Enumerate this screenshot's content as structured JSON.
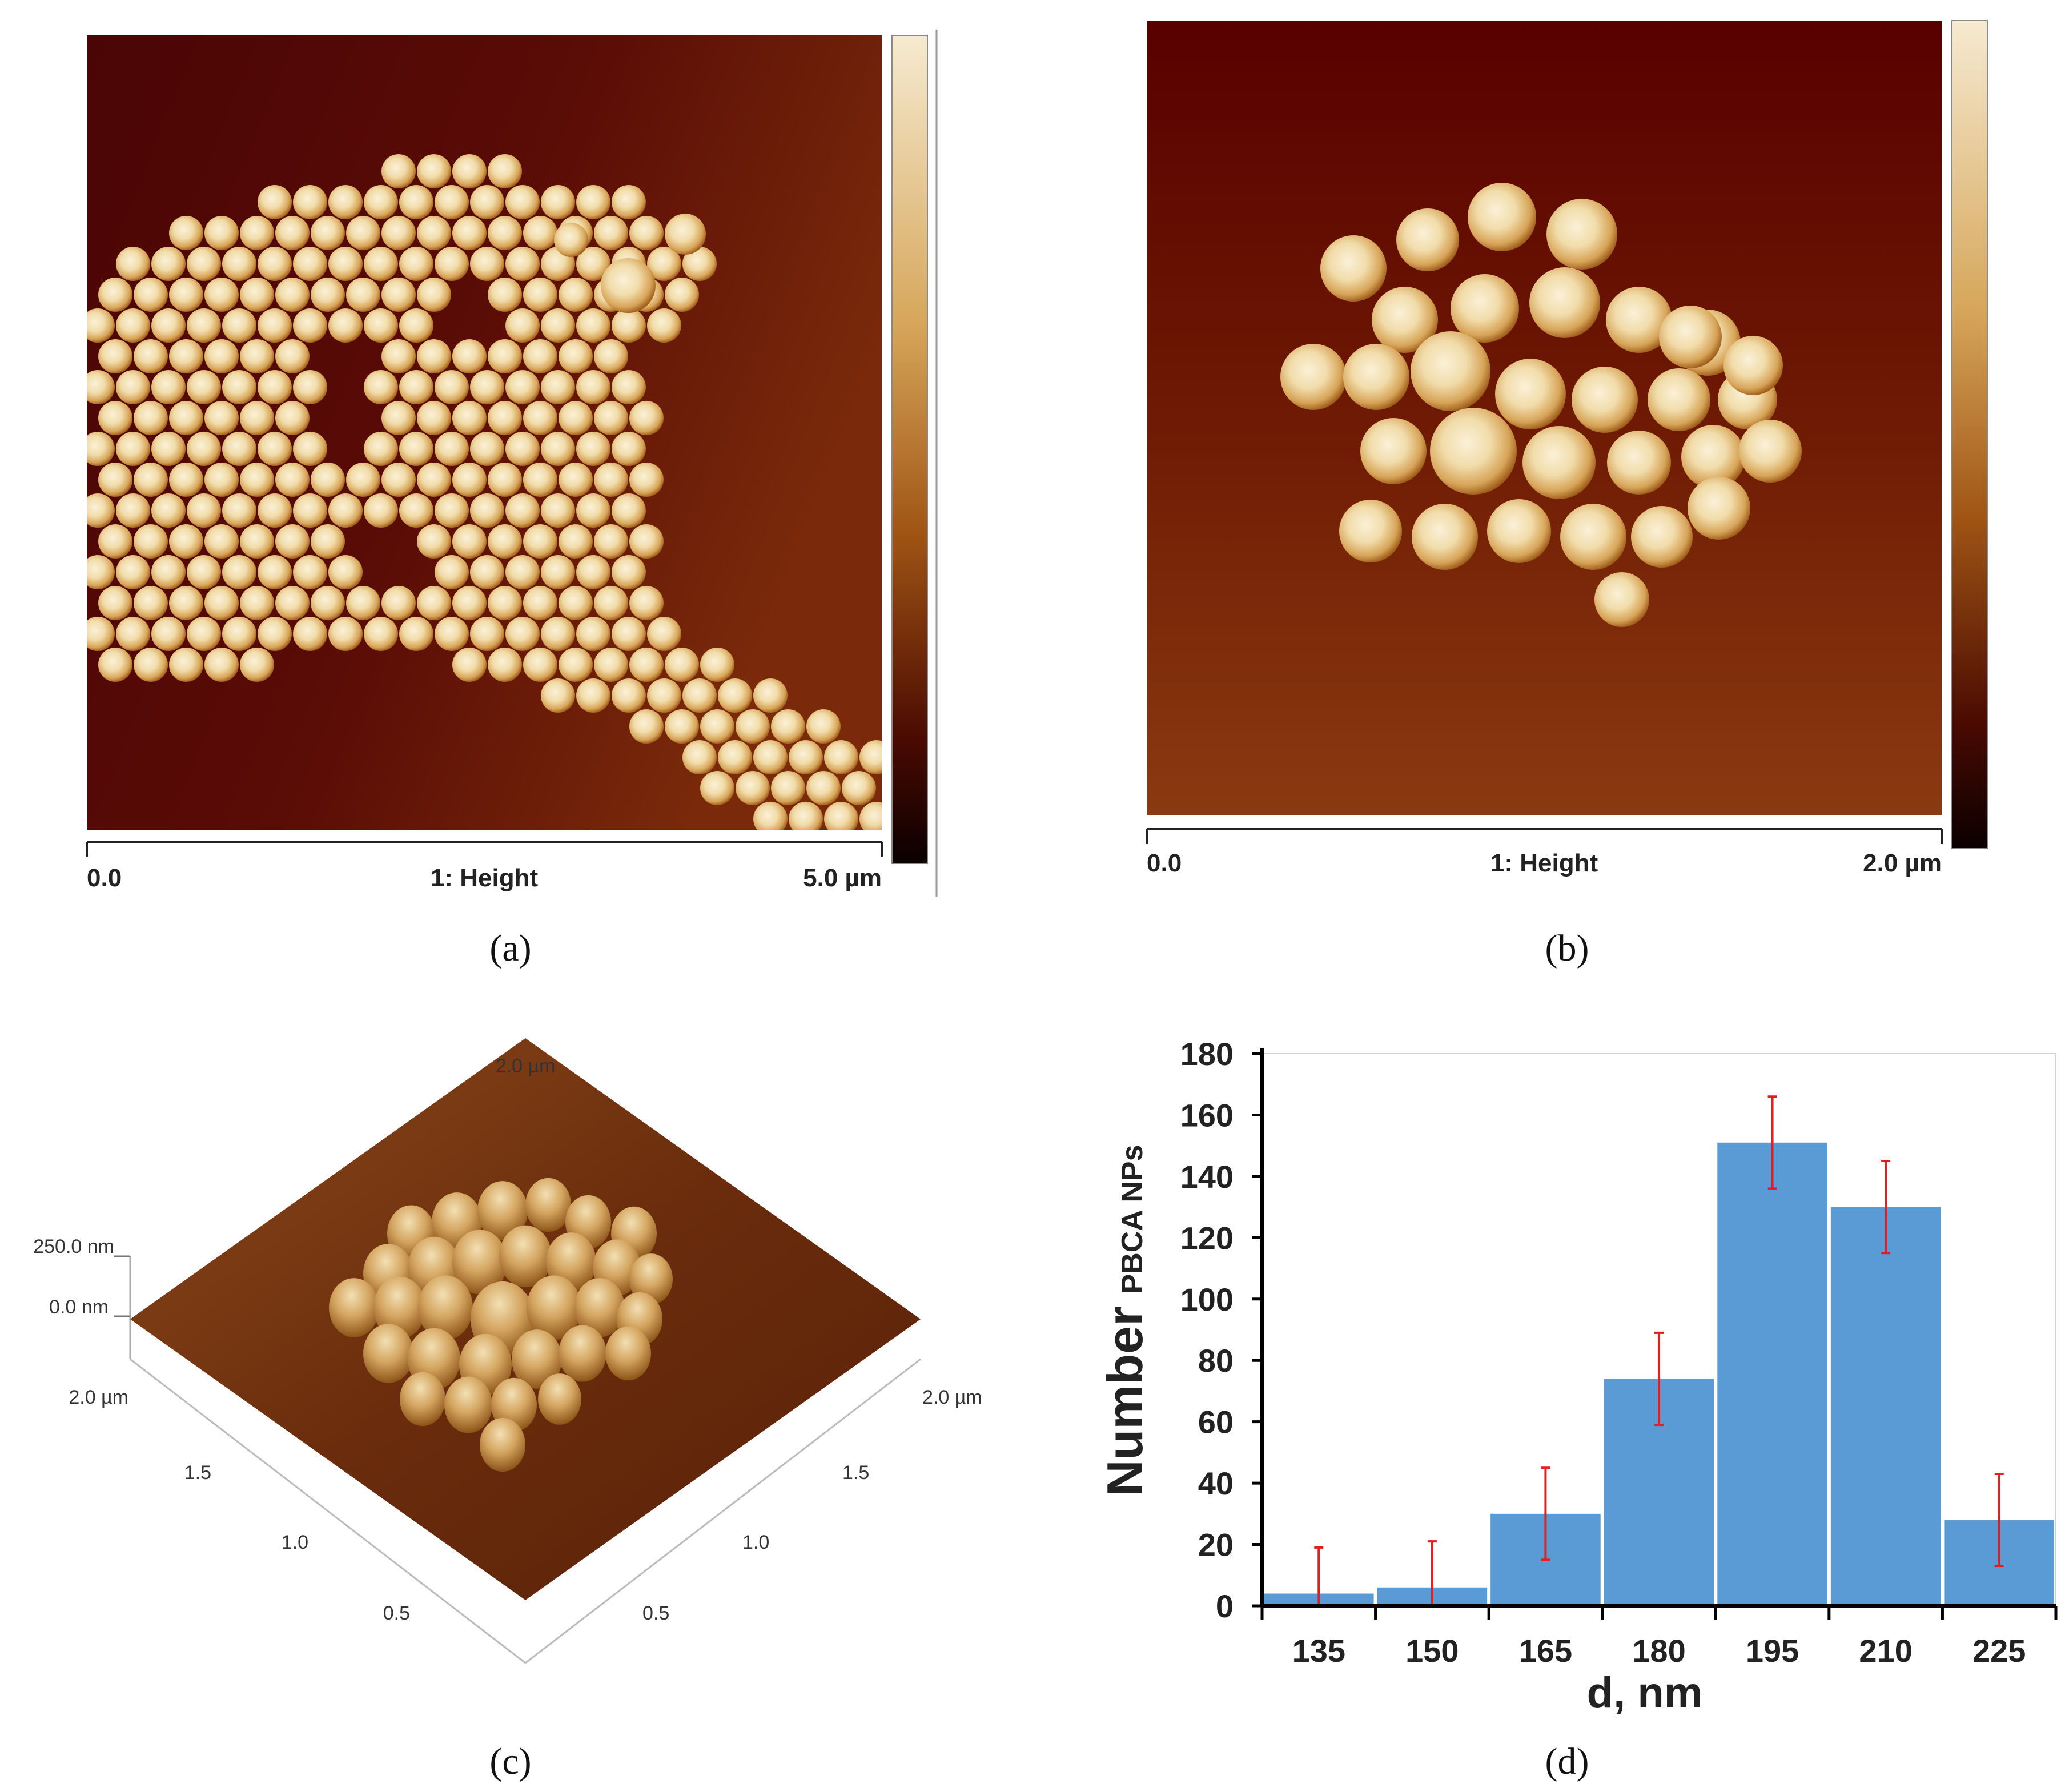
{
  "panels": {
    "a": {
      "caption": "(a)",
      "scale_start": "0.0",
      "scale_label": "1: Height",
      "scale_end": "5.0 µm"
    },
    "b": {
      "caption": "(b)",
      "scale_start": "0.0",
      "scale_label": "1: Height",
      "scale_end": "2.0 µm"
    },
    "c": {
      "caption": "(c)",
      "z_top": "250.0 nm",
      "z_bottom": "0.0 nm",
      "left_axis": [
        "2.0 µm",
        "1.5",
        "1.0",
        "0.5"
      ],
      "right_axis": [
        "2.0 µm",
        "1.5",
        "1.0",
        "0.5"
      ],
      "back_label": "2.0 µm"
    },
    "d": {
      "caption": "(d)"
    }
  },
  "colors": {
    "afm_dark": "#3a0000",
    "afm_mid": "#7a2a08",
    "afm_light": "#f4e6c2",
    "bar": "#5b9bd5",
    "error": "#e02020"
  },
  "chart_data": {
    "type": "bar",
    "xlabel": "d, nm",
    "ylabel_main": "Number",
    "ylabel_sub": "PBCA NPs",
    "categories": [
      "135",
      "150",
      "165",
      "180",
      "195",
      "210",
      "225"
    ],
    "values": [
      4,
      6,
      30,
      74,
      151,
      130,
      28
    ],
    "errors_low": [
      0,
      0,
      15,
      59,
      136,
      115,
      13
    ],
    "errors_high": [
      19,
      21,
      45,
      89,
      166,
      145,
      43
    ],
    "ylim": [
      0,
      180
    ],
    "yticks": [
      "0",
      "20",
      "40",
      "60",
      "80",
      "100",
      "120",
      "140",
      "160",
      "180"
    ]
  }
}
